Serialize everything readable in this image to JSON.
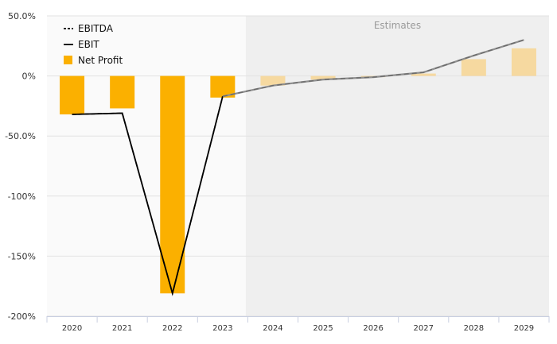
{
  "chart_data": {
    "type": "bar+line",
    "title": "",
    "xlabel": "",
    "ylabel": "",
    "categories": [
      "2020",
      "2021",
      "2022",
      "2023",
      "2024",
      "2025",
      "2026",
      "2027",
      "2028",
      "2029"
    ],
    "estimates_start_index": 4,
    "estimates_label": "Estimates",
    "ylim": [
      -200,
      50
    ],
    "y_ticks": [
      50,
      0,
      -50,
      -100,
      -150,
      -200
    ],
    "y_tick_labels": [
      "50.0%",
      "0%",
      "-50.0%",
      "-100%",
      "-150%",
      "-200%"
    ],
    "legend_position": "top-left",
    "grid": true,
    "series": [
      {
        "name": "EBITDA",
        "kind": "line",
        "style": "dashed",
        "color": "#000000",
        "values": [
          -32,
          -31,
          -181,
          -17,
          -8,
          -3,
          -1,
          3,
          17,
          30
        ]
      },
      {
        "name": "EBIT",
        "kind": "line",
        "style": "solid",
        "color": "#000000",
        "values": [
          -32,
          -31,
          -181,
          -17,
          -8,
          -3,
          -1,
          3,
          17,
          30
        ]
      },
      {
        "name": "Net Profit",
        "kind": "bar",
        "color": "#FBB000",
        "estimate_color": "#F6D9A0",
        "values": [
          -32,
          -27,
          -181,
          -18,
          -8,
          -3,
          -1,
          2,
          14,
          23
        ]
      }
    ]
  }
}
